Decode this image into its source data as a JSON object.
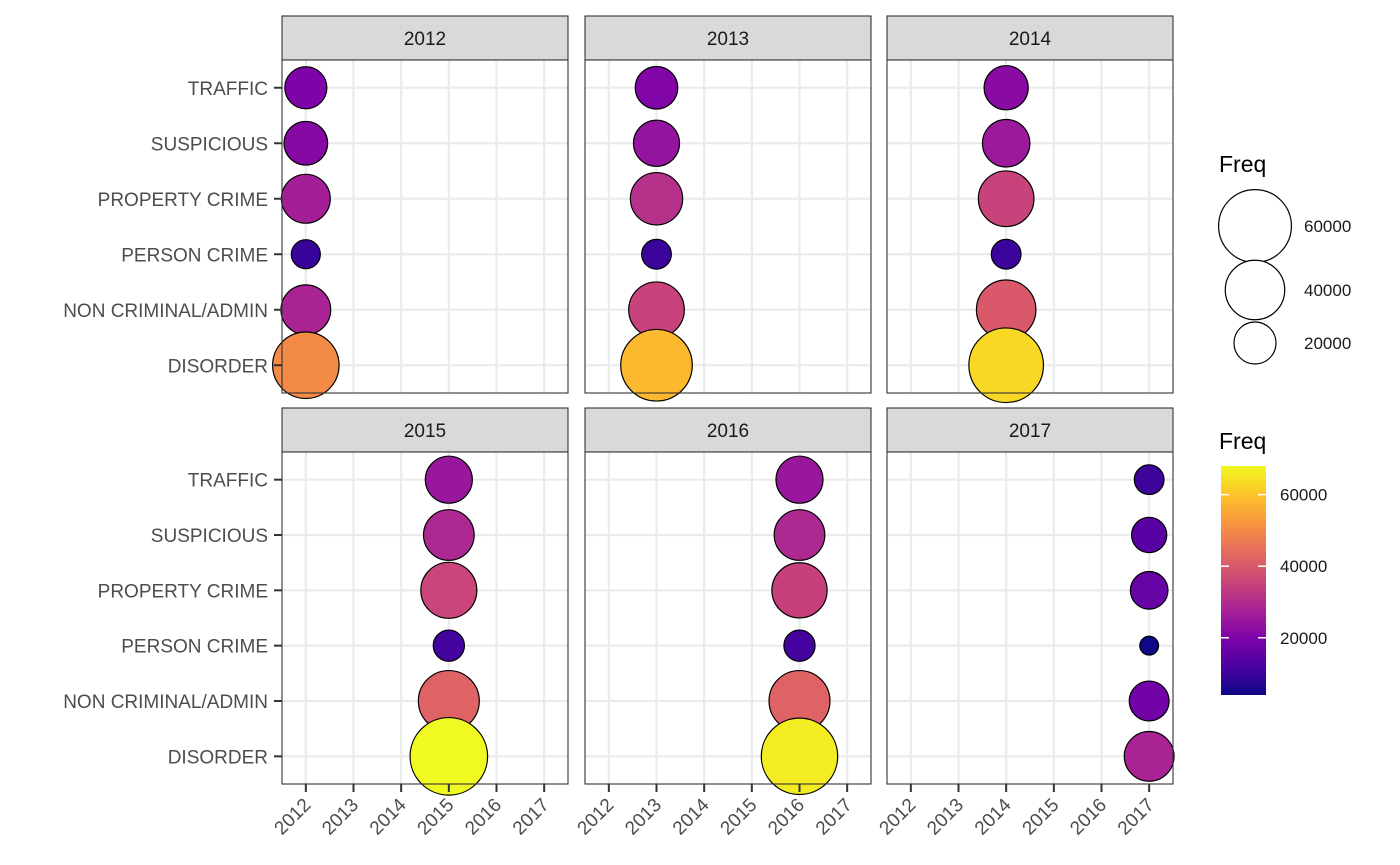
{
  "chart_data": {
    "type": "scatter",
    "facet_by": "year",
    "facets": [
      "2012",
      "2013",
      "2014",
      "2015",
      "2016",
      "2017"
    ],
    "x_ticks": [
      "2012",
      "2013",
      "2014",
      "2015",
      "2016",
      "2017"
    ],
    "categories": [
      "TRAFFIC",
      "SUSPICIOUS",
      "PROPERTY CRIME",
      "PERSON CRIME",
      "NON CRIMINAL/ADMIN",
      "DISORDER"
    ],
    "size_legend": {
      "title": "Freq",
      "breaks": [
        60000,
        40000,
        20000
      ],
      "labels": [
        "60000",
        "40000",
        "20000"
      ]
    },
    "color_legend": {
      "title": "Freq",
      "breaks": [
        20000,
        40000,
        60000
      ],
      "labels": [
        "20000",
        "40000",
        "60000"
      ],
      "range": [
        4000,
        68000
      ],
      "palette": "plasma"
    },
    "grid": true,
    "legend_position": "right",
    "points": [
      {
        "facet": "2012",
        "x": 2012,
        "category": "TRAFFIC",
        "freq": 20000
      },
      {
        "facet": "2012",
        "x": 2012,
        "category": "SUSPICIOUS",
        "freq": 21500
      },
      {
        "facet": "2012",
        "x": 2012,
        "category": "PROPERTY CRIME",
        "freq": 27000
      },
      {
        "facet": "2012",
        "x": 2012,
        "category": "PERSON CRIME",
        "freq": 9500
      },
      {
        "facet": "2012",
        "x": 2012,
        "category": "NON CRIMINAL/ADMIN",
        "freq": 28000
      },
      {
        "facet": "2012",
        "x": 2012,
        "category": "DISORDER",
        "freq": 50000
      },
      {
        "facet": "2013",
        "x": 2013,
        "category": "TRAFFIC",
        "freq": 20500
      },
      {
        "facet": "2013",
        "x": 2013,
        "category": "SUSPICIOUS",
        "freq": 24000
      },
      {
        "facet": "2013",
        "x": 2013,
        "category": "PROPERTY CRIME",
        "freq": 31000
      },
      {
        "facet": "2013",
        "x": 2013,
        "category": "PERSON CRIME",
        "freq": 10000
      },
      {
        "facet": "2013",
        "x": 2013,
        "category": "NON CRIMINAL/ADMIN",
        "freq": 35000
      },
      {
        "facet": "2013",
        "x": 2013,
        "category": "DISORDER",
        "freq": 58000
      },
      {
        "facet": "2014",
        "x": 2014,
        "category": "TRAFFIC",
        "freq": 22000
      },
      {
        "facet": "2014",
        "x": 2014,
        "category": "SUSPICIOUS",
        "freq": 25500
      },
      {
        "facet": "2014",
        "x": 2014,
        "category": "PROPERTY CRIME",
        "freq": 35000
      },
      {
        "facet": "2014",
        "x": 2014,
        "category": "PERSON CRIME",
        "freq": 10000
      },
      {
        "facet": "2014",
        "x": 2014,
        "category": "NON CRIMINAL/ADMIN",
        "freq": 40000
      },
      {
        "facet": "2014",
        "x": 2014,
        "category": "DISORDER",
        "freq": 63000
      },
      {
        "facet": "2015",
        "x": 2015,
        "category": "TRAFFIC",
        "freq": 25000
      },
      {
        "facet": "2015",
        "x": 2015,
        "category": "SUSPICIOUS",
        "freq": 29000
      },
      {
        "facet": "2015",
        "x": 2015,
        "category": "PROPERTY CRIME",
        "freq": 35500
      },
      {
        "facet": "2015",
        "x": 2015,
        "category": "PERSON CRIME",
        "freq": 11000
      },
      {
        "facet": "2015",
        "x": 2015,
        "category": "NON CRIMINAL/ADMIN",
        "freq": 42000
      },
      {
        "facet": "2015",
        "x": 2015,
        "category": "DISORDER",
        "freq": 68000
      },
      {
        "facet": "2016",
        "x": 2016,
        "category": "TRAFFIC",
        "freq": 25000
      },
      {
        "facet": "2016",
        "x": 2016,
        "category": "SUSPICIOUS",
        "freq": 29000
      },
      {
        "facet": "2016",
        "x": 2016,
        "category": "PROPERTY CRIME",
        "freq": 34500
      },
      {
        "facet": "2016",
        "x": 2016,
        "category": "PERSON CRIME",
        "freq": 11000
      },
      {
        "facet": "2016",
        "x": 2016,
        "category": "NON CRIMINAL/ADMIN",
        "freq": 42000
      },
      {
        "facet": "2016",
        "x": 2016,
        "category": "DISORDER",
        "freq": 66000
      },
      {
        "facet": "2017",
        "x": 2017,
        "category": "TRAFFIC",
        "freq": 10000
      },
      {
        "facet": "2017",
        "x": 2017,
        "category": "SUSPICIOUS",
        "freq": 14000
      },
      {
        "facet": "2017",
        "x": 2017,
        "category": "PROPERTY CRIME",
        "freq": 16000
      },
      {
        "facet": "2017",
        "x": 2017,
        "category": "PERSON CRIME",
        "freq": 4000
      },
      {
        "facet": "2017",
        "x": 2017,
        "category": "NON CRIMINAL/ADMIN",
        "freq": 18000
      },
      {
        "facet": "2017",
        "x": 2017,
        "category": "DISORDER",
        "freq": 28000
      }
    ]
  }
}
